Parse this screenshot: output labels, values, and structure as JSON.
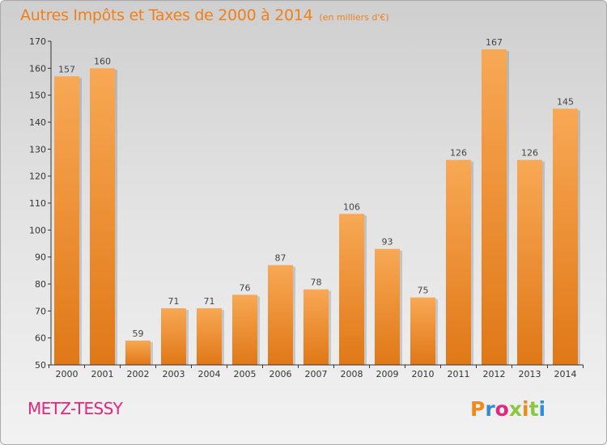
{
  "header": {
    "title": "Autres Impôts et Taxes de 2000 à 2014",
    "subtitle": "(en milliers d'€)"
  },
  "commune": "METZ-TESSY",
  "logo": {
    "text": "Proxiti"
  },
  "colors": {
    "bar_light": "#f8a855",
    "bar_dark": "#e07817",
    "accent": "#f07f1a",
    "commune": "#e6267c"
  },
  "chart_data": {
    "type": "bar",
    "title": "Autres Impôts et Taxes de 2000 à 2014",
    "subtitle": "(en milliers d'€)",
    "xlabel": "",
    "ylabel": "",
    "categories": [
      "2000",
      "2001",
      "2002",
      "2003",
      "2004",
      "2005",
      "2006",
      "2007",
      "2008",
      "2009",
      "2010",
      "2011",
      "2012",
      "2013",
      "2014"
    ],
    "values": [
      157,
      160,
      59,
      71,
      71,
      76,
      87,
      78,
      106,
      93,
      75,
      126,
      167,
      126,
      145
    ],
    "ylim": [
      50,
      170
    ],
    "yticks": [
      50,
      60,
      70,
      80,
      90,
      100,
      110,
      120,
      130,
      140,
      150,
      160,
      170
    ],
    "grid": false,
    "legend": "none"
  }
}
